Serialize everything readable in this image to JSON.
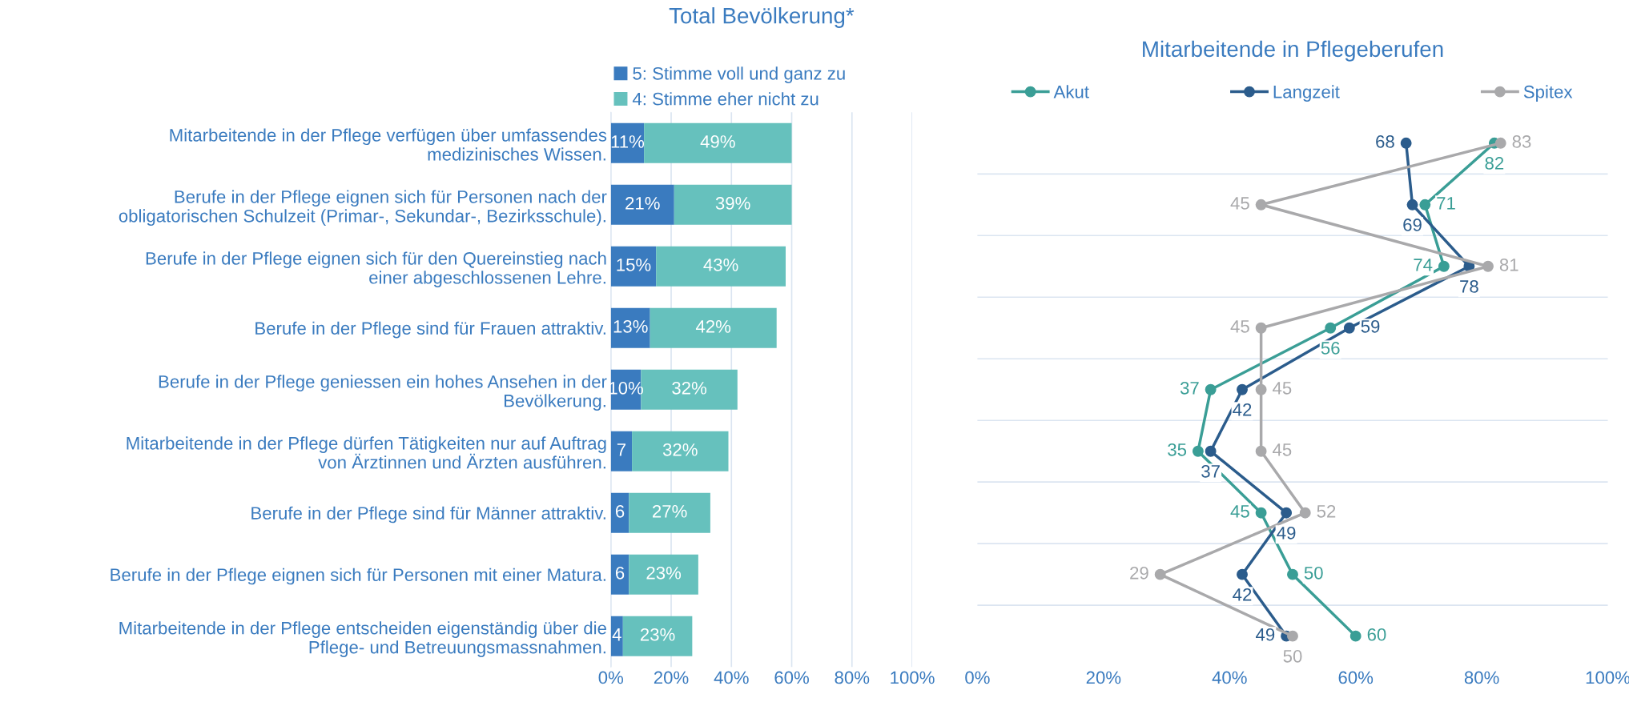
{
  "chart_data": [
    {
      "type": "bar",
      "orientation": "horizontal",
      "stacked": true,
      "title": "Total Bevölkerung*",
      "categories": [
        "Mitarbeitende in der Pflege verfügen über umfassendes\nmedizinisches Wissen.",
        "Berufe in der Pflege eignen sich für Personen nach der\nobligatorischen Schulzeit (Primar-, Sekundar-, Bezirksschule).",
        "Berufe in der Pflege eignen sich für den Quereinstieg nach\neiner abgeschlossenen Lehre.",
        "Berufe in der Pflege sind für Frauen attraktiv.",
        "Berufe in der Pflege geniessen ein hohes Ansehen in der\nBevölkerung.",
        "Mitarbeitende in der Pflege dürfen Tätigkeiten nur auf Auftrag\nvon Ärztinnen und Ärzten ausführen.",
        "Berufe in der Pflege sind für Männer attraktiv.",
        "Berufe in der Pflege eignen sich für Personen mit einer Matura.",
        "Mitarbeitende in der Pflege entscheiden eigenständig über die\nPflege- und Betreuungsmassnahmen."
      ],
      "series": [
        {
          "name": "5: Stimme voll und ganz zu",
          "color": "#3a7bbf",
          "values": [
            11,
            21,
            15,
            13,
            10,
            7,
            6,
            6,
            4
          ],
          "value_labels": [
            "11%",
            "21%",
            "15%",
            "13%",
            "10%",
            "7",
            "6",
            "6",
            "4"
          ]
        },
        {
          "name": "4: Stimme eher nicht zu",
          "color": "#66c1bd",
          "values": [
            49,
            39,
            43,
            42,
            32,
            32,
            27,
            23,
            23
          ],
          "value_labels": [
            "49%",
            "39%",
            "43%",
            "42%",
            "32%",
            "32%",
            "27%",
            "23%",
            "23%"
          ]
        }
      ],
      "xlim": [
        0,
        100
      ],
      "xticks": [
        {
          "value": 0,
          "label": "0%"
        },
        {
          "value": 20,
          "label": "20%"
        },
        {
          "value": 40,
          "label": "40%"
        },
        {
          "value": 60,
          "label": "60%"
        },
        {
          "value": 80,
          "label": "80%"
        },
        {
          "value": 100,
          "label": "100%"
        }
      ],
      "grid": "x",
      "legend": "top left"
    },
    {
      "type": "line",
      "orientation": "horizontal",
      "title": "Mitarbeitende in Pflegeberufen",
      "categories": [
        null,
        null,
        null,
        null,
        null,
        null,
        null,
        null,
        null
      ],
      "series": [
        {
          "name": "Akut",
          "color": "#3a9e96",
          "values": [
            82,
            71,
            74,
            56,
            37,
            35,
            45,
            50,
            60
          ]
        },
        {
          "name": "Langzeit",
          "color": "#2b5c8c",
          "values": [
            68,
            69,
            78,
            59,
            42,
            37,
            49,
            42,
            49
          ]
        },
        {
          "name": "Spitex",
          "color": "#a9a9ab",
          "values": [
            83,
            45,
            81,
            45,
            45,
            45,
            52,
            29,
            50
          ]
        }
      ],
      "xlim": [
        0,
        100
      ],
      "xticks": [
        {
          "value": 0,
          "label": "0%"
        },
        {
          "value": 20,
          "label": "20%"
        },
        {
          "value": 40,
          "label": "40%"
        },
        {
          "value": 60,
          "label": "60%"
        },
        {
          "value": 80,
          "label": "80%"
        },
        {
          "value": 100,
          "label": "100%"
        }
      ],
      "grid": "y",
      "legend": "top",
      "marker": "circle",
      "line_style": "solid",
      "data_labels": true,
      "tick_labels": "x"
    }
  ]
}
